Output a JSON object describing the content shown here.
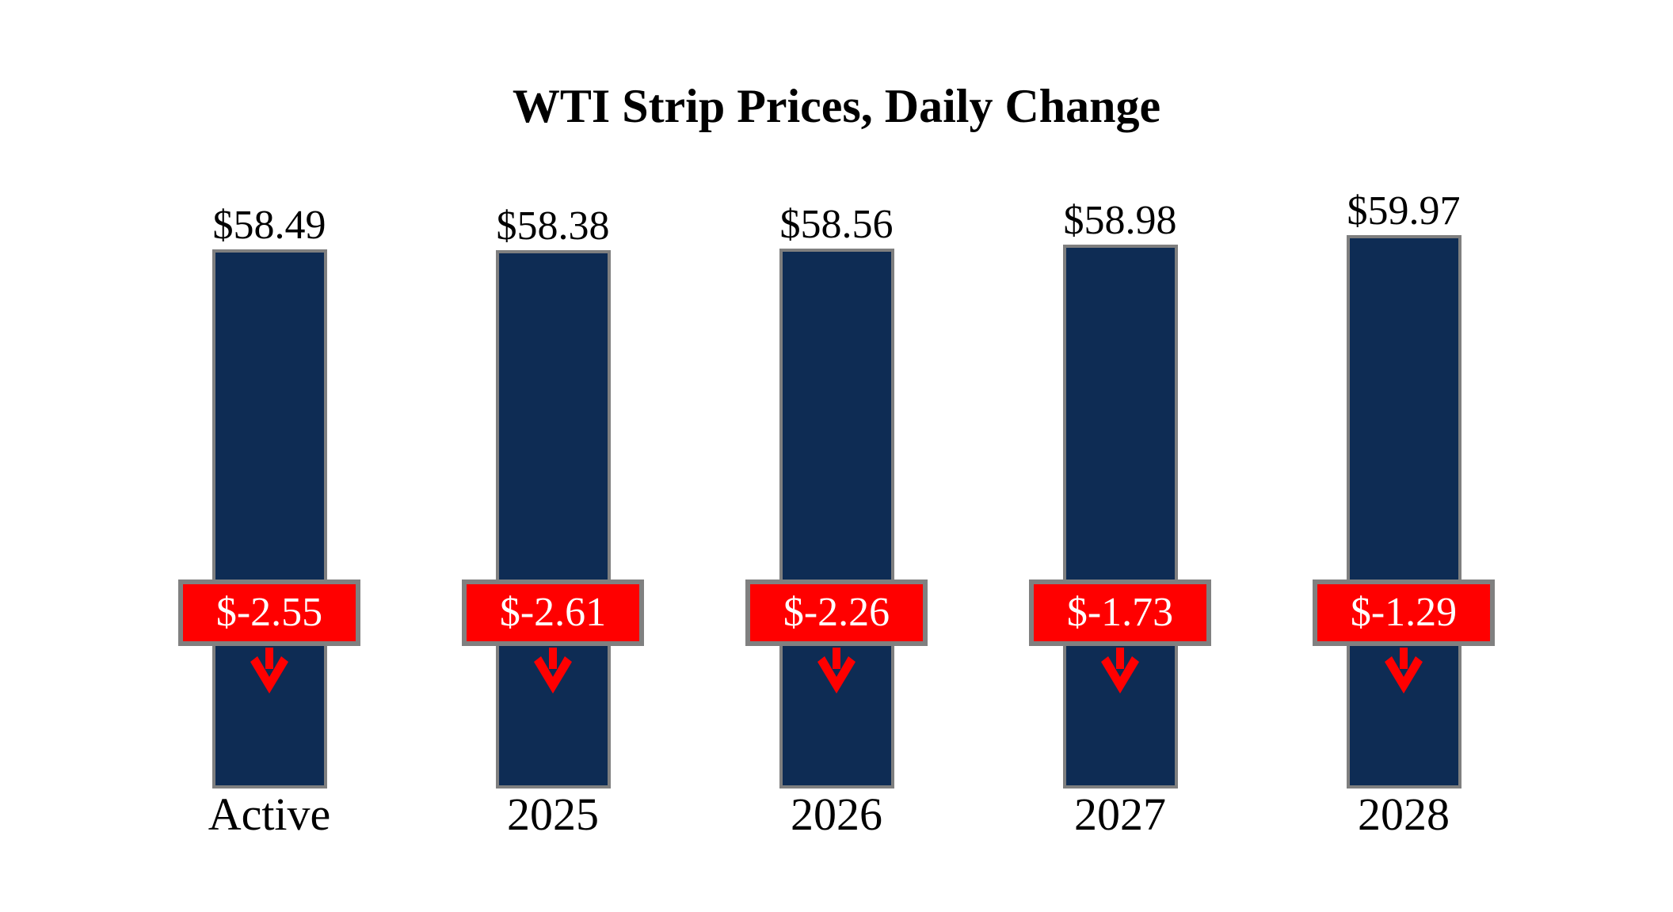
{
  "chart_data": {
    "type": "bar",
    "title": "WTI Strip Prices, Daily Change",
    "categories": [
      "Active",
      "2025",
      "2026",
      "2027",
      "2028"
    ],
    "series": [
      {
        "name": "WTI Strip Price",
        "values": [
          58.49,
          58.38,
          58.56,
          58.98,
          59.97
        ]
      },
      {
        "name": "Daily Change",
        "values": [
          -2.55,
          -2.61,
          -2.26,
          -1.73,
          -1.29
        ]
      }
    ],
    "ylim": [
      0,
      60
    ],
    "grid": false,
    "legend": "none",
    "xlabel": "",
    "ylabel": "",
    "columns": [
      {
        "category": "Active",
        "price": 58.49,
        "price_label": "$58.49",
        "change": -2.55,
        "change_label": "$-2.55"
      },
      {
        "category": "2025",
        "price": 58.38,
        "price_label": "$58.38",
        "change": -2.61,
        "change_label": "$-2.61"
      },
      {
        "category": "2026",
        "price": 58.56,
        "price_label": "$58.56",
        "change": -2.26,
        "change_label": "$-2.26"
      },
      {
        "category": "2027",
        "price": 58.98,
        "price_label": "$58.98",
        "change": -1.73,
        "change_label": "$-1.73"
      },
      {
        "category": "2028",
        "price": 59.97,
        "price_label": "$59.97",
        "change": -1.29,
        "change_label": "$-1.29"
      }
    ]
  },
  "colors": {
    "bar_fill": "#0e2c54",
    "bar_border": "#7f7f7f",
    "badge_fill": "#ff0000",
    "badge_border": "#808080",
    "badge_text": "#ffffff",
    "arrow": "#ff0000",
    "text": "#000000",
    "background": "#ffffff"
  }
}
